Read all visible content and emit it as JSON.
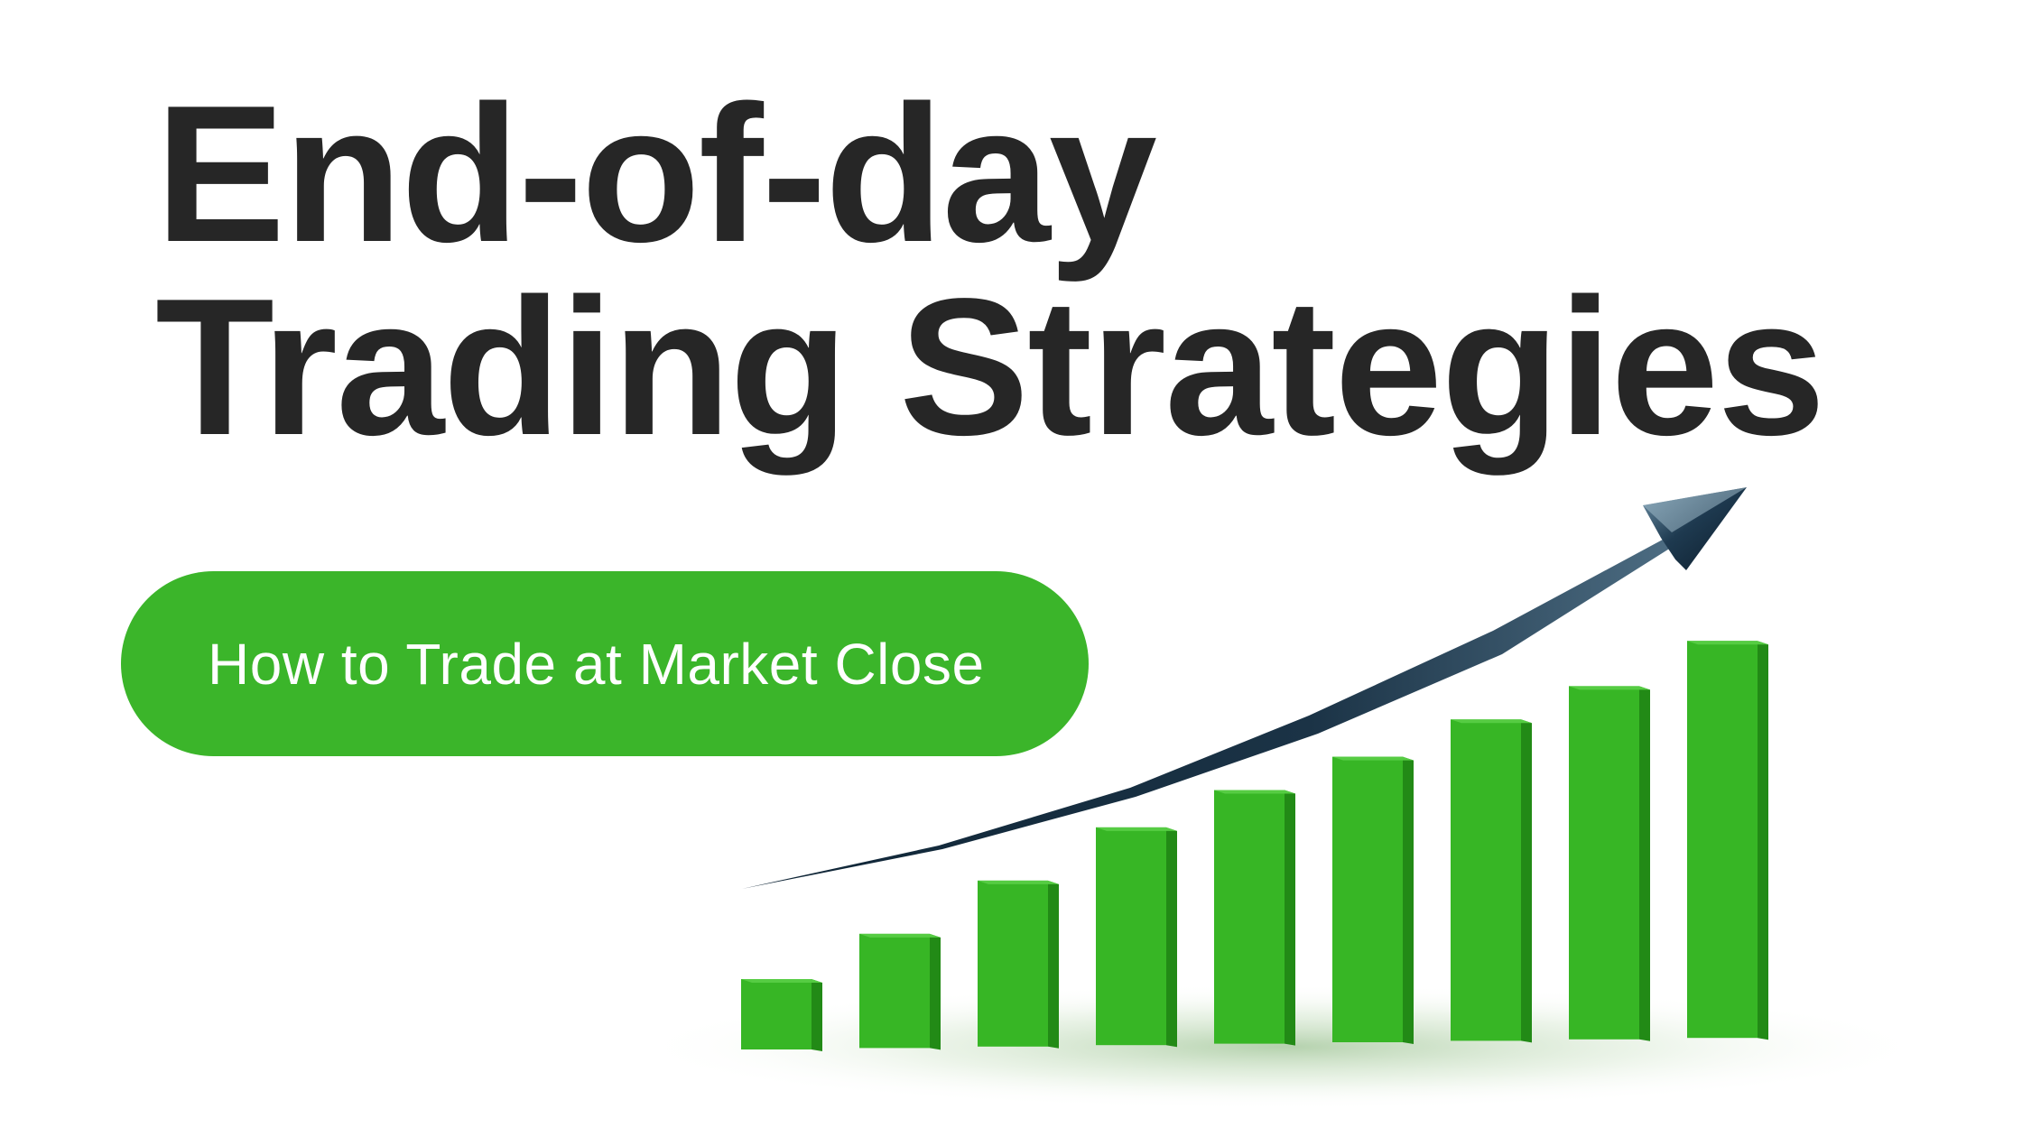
{
  "title": {
    "line1": "End-of-day",
    "line2": "Trading Strategies"
  },
  "subtitle": "How to Trade at Market Close",
  "colors": {
    "title_text": "#262626",
    "pill_background": "#3bb52a",
    "subtitle_text": "#ffffff",
    "bar_front": "#37b625",
    "bar_side": "#228a16",
    "bar_top": "#56cc43",
    "arrow": "#1b3346"
  },
  "illustration": {
    "bars": [
      {
        "level": 0.18
      },
      {
        "level": 0.29
      },
      {
        "level": 0.42
      },
      {
        "level": 0.55
      },
      {
        "level": 0.64
      },
      {
        "level": 0.72
      },
      {
        "level": 0.81
      },
      {
        "level": 0.89
      },
      {
        "level": 1.0
      }
    ],
    "arrow_icon": "trend-up-arrow-icon"
  }
}
